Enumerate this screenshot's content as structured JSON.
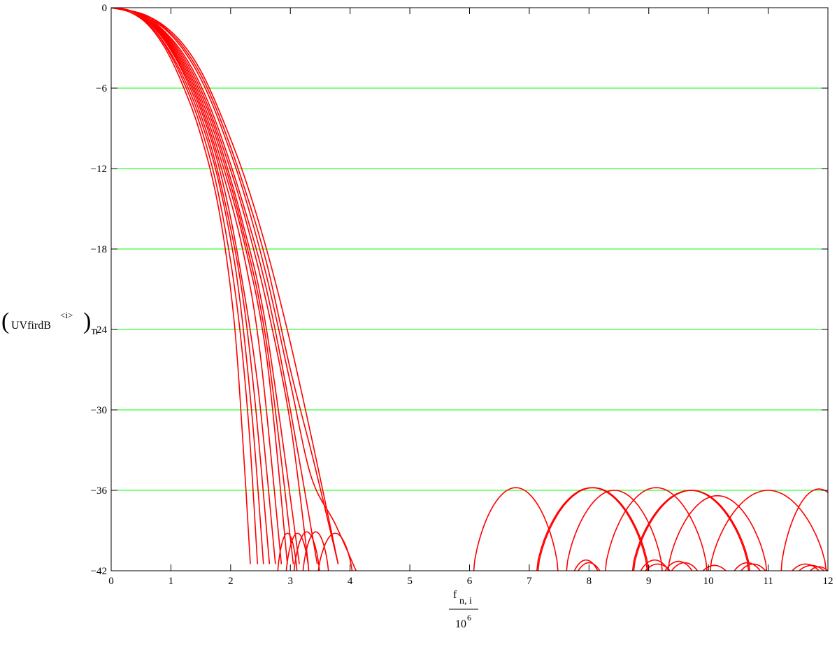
{
  "chart_data": {
    "type": "line",
    "xlabel": {
      "numerator_base": "f",
      "numerator_sub": "n, i",
      "denominator_base": "10",
      "denominator_exp": "6"
    },
    "ylabel": {
      "open": "(",
      "base": "UVfirdB",
      "sup": "<i>",
      "close": ")",
      "sub": "n"
    },
    "xlim": [
      0,
      12
    ],
    "ylim": [
      -42,
      0
    ],
    "x_ticks": [
      "0",
      "1",
      "2",
      "3",
      "4",
      "5",
      "6",
      "7",
      "8",
      "9",
      "10",
      "11",
      "12"
    ],
    "y_ticks": [
      "0",
      "−6",
      "−12",
      "−18",
      "−24",
      "−30",
      "−36",
      "−42"
    ],
    "y_tick_values": [
      0,
      -6,
      -12,
      -18,
      -24,
      -30,
      -36,
      -42
    ],
    "grid": "horizontal",
    "colors": {
      "series": "#ff0000",
      "grid": "#00ff00",
      "axis": "#000000"
    },
    "main_rolloff_curves": [
      {
        "x": [
          0,
          0.3,
          0.6,
          0.9,
          1.2,
          1.5,
          1.8,
          2.05,
          2.2,
          2.33
        ],
        "y": [
          0,
          -0.3,
          -1.2,
          -3.0,
          -5.8,
          -9.5,
          -15,
          -23,
          -32,
          -41.5
        ]
      },
      {
        "x": [
          0,
          0.3,
          0.6,
          0.9,
          1.2,
          1.5,
          1.8,
          2.1,
          2.3,
          2.45
        ],
        "y": [
          0,
          -0.3,
          -1.1,
          -2.8,
          -5.4,
          -8.9,
          -14,
          -22,
          -31,
          -41.5
        ]
      },
      {
        "x": [
          0,
          0.3,
          0.6,
          0.9,
          1.2,
          1.5,
          1.8,
          2.1,
          2.35,
          2.55
        ],
        "y": [
          0,
          -0.3,
          -1.1,
          -2.7,
          -5.1,
          -8.4,
          -13,
          -20,
          -30,
          -41.5
        ]
      },
      {
        "x": [
          0,
          0.3,
          0.6,
          0.9,
          1.2,
          1.5,
          1.8,
          2.15,
          2.4,
          2.65
        ],
        "y": [
          0,
          -0.2,
          -1.0,
          -2.5,
          -4.8,
          -8.0,
          -12.5,
          -20,
          -29,
          -41.5
        ]
      },
      {
        "x": [
          0,
          0.3,
          0.6,
          0.9,
          1.2,
          1.5,
          1.8,
          2.1,
          2.45,
          2.75
        ],
        "y": [
          0,
          -0.2,
          -1.0,
          -2.4,
          -4.6,
          -7.6,
          -11.8,
          -18,
          -28,
          -41.5
        ]
      },
      {
        "x": [
          0,
          0.3,
          0.6,
          0.9,
          1.2,
          1.5,
          1.8,
          2.2,
          2.5,
          2.85
        ],
        "y": [
          0,
          -0.2,
          -0.9,
          -2.3,
          -4.4,
          -7.3,
          -11.3,
          -18,
          -26,
          -41.5
        ]
      },
      {
        "x": [
          0,
          0.3,
          0.6,
          0.9,
          1.2,
          1.5,
          1.8,
          2.2,
          2.6,
          2.95
        ],
        "y": [
          0,
          -0.2,
          -0.9,
          -2.2,
          -4.2,
          -7.0,
          -10.8,
          -17,
          -26,
          -41.5
        ]
      },
      {
        "x": [
          0,
          0.3,
          0.6,
          0.9,
          1.2,
          1.5,
          1.8,
          2.2,
          2.6,
          3.05
        ],
        "y": [
          0,
          -0.2,
          -0.9,
          -2.1,
          -4.0,
          -6.7,
          -10.3,
          -16.5,
          -25,
          -41.5
        ]
      },
      {
        "x": [
          0,
          0.3,
          0.6,
          0.9,
          1.2,
          1.5,
          1.8,
          2.2,
          2.6,
          3.15
        ],
        "y": [
          0,
          -0.2,
          -0.8,
          -2.0,
          -3.8,
          -6.4,
          -9.9,
          -16,
          -24,
          -41.5
        ]
      },
      {
        "x": [
          0,
          0.3,
          0.6,
          0.9,
          1.2,
          1.5,
          1.8,
          2.2,
          2.6,
          3.0,
          3.3
        ],
        "y": [
          0,
          -0.2,
          -0.8,
          -1.9,
          -3.6,
          -6.1,
          -9.5,
          -15,
          -22,
          -31,
          -41.5
        ]
      },
      {
        "x": [
          0,
          0.3,
          0.6,
          0.9,
          1.2,
          1.5,
          1.8,
          2.2,
          2.6,
          3.0,
          3.45
        ],
        "y": [
          0,
          -0.2,
          -0.7,
          -1.8,
          -3.4,
          -5.8,
          -9.1,
          -14.5,
          -21,
          -30,
          -41.5
        ]
      },
      {
        "x": [
          0,
          0.3,
          0.6,
          0.9,
          1.2,
          1.5,
          1.8,
          2.2,
          2.6,
          3.0,
          3.35,
          3.75,
          4.1
        ],
        "y": [
          0,
          -0.2,
          -0.7,
          -1.6,
          -3.1,
          -5.3,
          -8.4,
          -13.5,
          -20,
          -28,
          -35,
          -38.5,
          -42
        ]
      },
      {
        "x": [
          0,
          0.3,
          0.6,
          0.9,
          1.2,
          1.5,
          1.8,
          2.2,
          2.6,
          3.0,
          3.4,
          3.8
        ],
        "y": [
          0,
          -0.2,
          -0.6,
          -1.5,
          -2.9,
          -5.0,
          -8.0,
          -13,
          -19,
          -27,
          -34,
          -41.5
        ]
      },
      {
        "x": [
          0,
          0.3,
          0.6,
          0.9,
          1.2,
          1.5,
          1.8,
          2.2,
          2.6,
          3.0,
          3.4,
          3.8
        ],
        "y": [
          0,
          -0.2,
          -0.6,
          -1.4,
          -2.7,
          -4.7,
          -7.6,
          -12.2,
          -18,
          -25,
          -33,
          -41.5
        ]
      }
    ],
    "sidelobes": [
      {
        "x0": 2.78,
        "x1": 3.12,
        "peak": -39.2
      },
      {
        "x0": 2.92,
        "x1": 3.32,
        "peak": -39.2
      },
      {
        "x0": 3.05,
        "x1": 3.5,
        "peak": -39.1
      },
      {
        "x0": 3.2,
        "x1": 3.65,
        "peak": -39.1
      },
      {
        "x0": 3.45,
        "x1": 4.05,
        "peak": -39.2
      },
      {
        "x0": 6.05,
        "x1": 7.5,
        "peak": -35.8
      },
      {
        "x0": 7.1,
        "x1": 9.0,
        "peak": -35.8
      },
      {
        "x0": 7.12,
        "x1": 9.02,
        "peak": -35.8
      },
      {
        "x0": 7.6,
        "x1": 9.25,
        "peak": -36.0
      },
      {
        "x0": 8.25,
        "x1": 10.0,
        "peak": -35.8
      },
      {
        "x0": 8.7,
        "x1": 10.7,
        "peak": -36.0
      },
      {
        "x0": 8.72,
        "x1": 10.72,
        "peak": -36.0
      },
      {
        "x0": 9.3,
        "x1": 11.0,
        "peak": -36.4
      },
      {
        "x0": 10.0,
        "x1": 12.0,
        "peak": -36.0
      },
      {
        "x0": 11.2,
        "x1": 12.5,
        "peak": -35.9
      },
      {
        "x0": 7.7,
        "x1": 8.2,
        "peak": -41.2
      },
      {
        "x0": 7.75,
        "x1": 8.25,
        "peak": -41.4
      },
      {
        "x0": 8.8,
        "x1": 9.4,
        "peak": -41.2
      },
      {
        "x0": 8.85,
        "x1": 9.45,
        "peak": -41.5
      },
      {
        "x0": 9.2,
        "x1": 9.8,
        "peak": -41.3
      },
      {
        "x0": 9.3,
        "x1": 9.9,
        "peak": -41.4
      },
      {
        "x0": 9.8,
        "x1": 10.4,
        "peak": -41.6
      },
      {
        "x0": 10.35,
        "x1": 10.95,
        "peak": -41.4
      },
      {
        "x0": 10.45,
        "x1": 11.05,
        "peak": -41.5
      },
      {
        "x0": 11.3,
        "x1": 11.95,
        "peak": -41.5
      },
      {
        "x0": 11.4,
        "x1": 12.05,
        "peak": -41.6
      },
      {
        "x0": 11.6,
        "x1": 12.1,
        "peak": -41.7
      }
    ]
  }
}
